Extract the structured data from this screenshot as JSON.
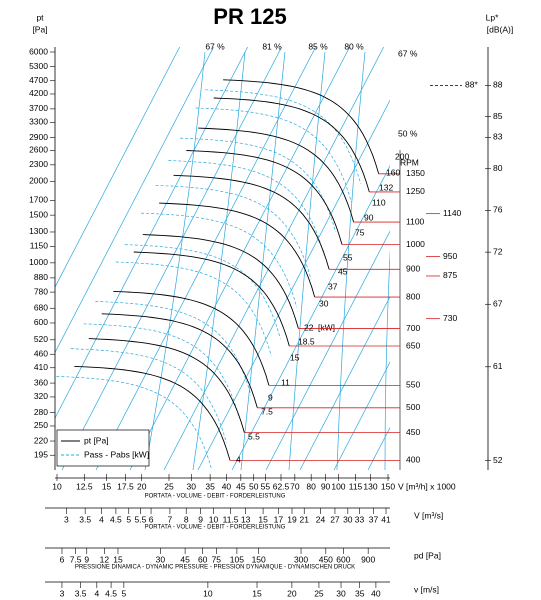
{
  "chart_data": {
    "type": "fan-curve",
    "title": "PR 125",
    "ylabel": "pt",
    "yunit": "[Pa]",
    "yscale": "log",
    "ylim": [
      172,
      6000
    ],
    "yticks": [
      6000,
      5300,
      4700,
      4200,
      3700,
      3300,
      2900,
      2600,
      2300,
      2000,
      1700,
      1500,
      1300,
      1150,
      1000,
      880,
      780,
      680,
      600,
      520,
      460,
      410,
      360,
      320,
      280,
      250,
      220,
      195
    ],
    "xscale": "log",
    "xlim": [
      10,
      150
    ],
    "xticks": [
      10,
      12.5,
      15,
      17.5,
      20,
      25,
      30,
      35,
      40,
      45,
      50,
      55,
      62.5,
      70,
      80,
      90,
      100,
      115,
      130,
      150
    ],
    "xlabel": "V [m³/h] x 1000",
    "xcaption": "PORTATA - VOLUME - DEBIT - FORDERLEISTUNG",
    "axes": [
      {
        "name": "V [m³/s]",
        "caption": "PORTATA - VOLUME - DEBIT - FORDERLEISTUNG",
        "lim": [
          2.78,
          41.67
        ],
        "ticks": [
          3,
          3.5,
          4,
          4.5,
          5,
          5.5,
          6,
          7,
          8,
          9,
          10,
          11.5,
          13,
          15,
          17,
          19,
          21,
          24,
          27,
          30,
          33,
          37,
          41
        ]
      },
      {
        "name": "pd [Pa]",
        "caption": "PRESSIONE DINAMICA - DYNAMIC PRESSURE - PRESSION DYNAMIQUE - DYNAMISCHEN DRUCK",
        "lim": [
          5.53,
          1245
        ],
        "ticks": [
          6,
          7.5,
          9,
          12,
          15,
          30,
          45,
          60,
          75,
          105,
          150,
          300,
          450,
          600,
          900
        ]
      },
      {
        "name": "v [m/s]",
        "lim": [
          2.88,
          44.2
        ],
        "ticks": [
          3,
          3.5,
          4,
          4.5,
          5,
          10,
          15,
          20,
          25,
          30,
          35,
          40
        ]
      }
    ],
    "rpm": {
      "label": "RPM",
      "lim": [
        384,
        2264
      ],
      "ticks": [
        1350,
        1250,
        1100,
        1000,
        900,
        800,
        700,
        650,
        550,
        500,
        450,
        400
      ],
      "extra": [
        1140,
        950,
        875,
        730
      ],
      "color": "#d62020"
    },
    "lp": {
      "label": "Lp*",
      "unit": "[dB(A)]",
      "lim": [
        51.1,
        91.2
      ],
      "ticks": [
        88,
        85,
        83,
        80,
        76,
        72,
        67,
        61,
        52
      ],
      "marker": {
        "value": 88,
        "label": "88*"
      }
    },
    "efficiency_labels": [
      "67 %",
      "81 %",
      "85 %",
      "80 %",
      "67 %",
      "50 %"
    ],
    "power_unit": "[kW]",
    "power_labels": [
      4,
      5.5,
      7.5,
      9,
      11,
      15,
      18.5,
      22,
      30,
      37,
      45,
      55,
      75,
      90,
      110,
      132,
      160,
      200
    ],
    "legend": [
      {
        "name": "pt [Pa]",
        "color": "#000000"
      },
      {
        "name": "Pass - Pabs [kW]",
        "color": "#29a8e0"
      }
    ]
  }
}
